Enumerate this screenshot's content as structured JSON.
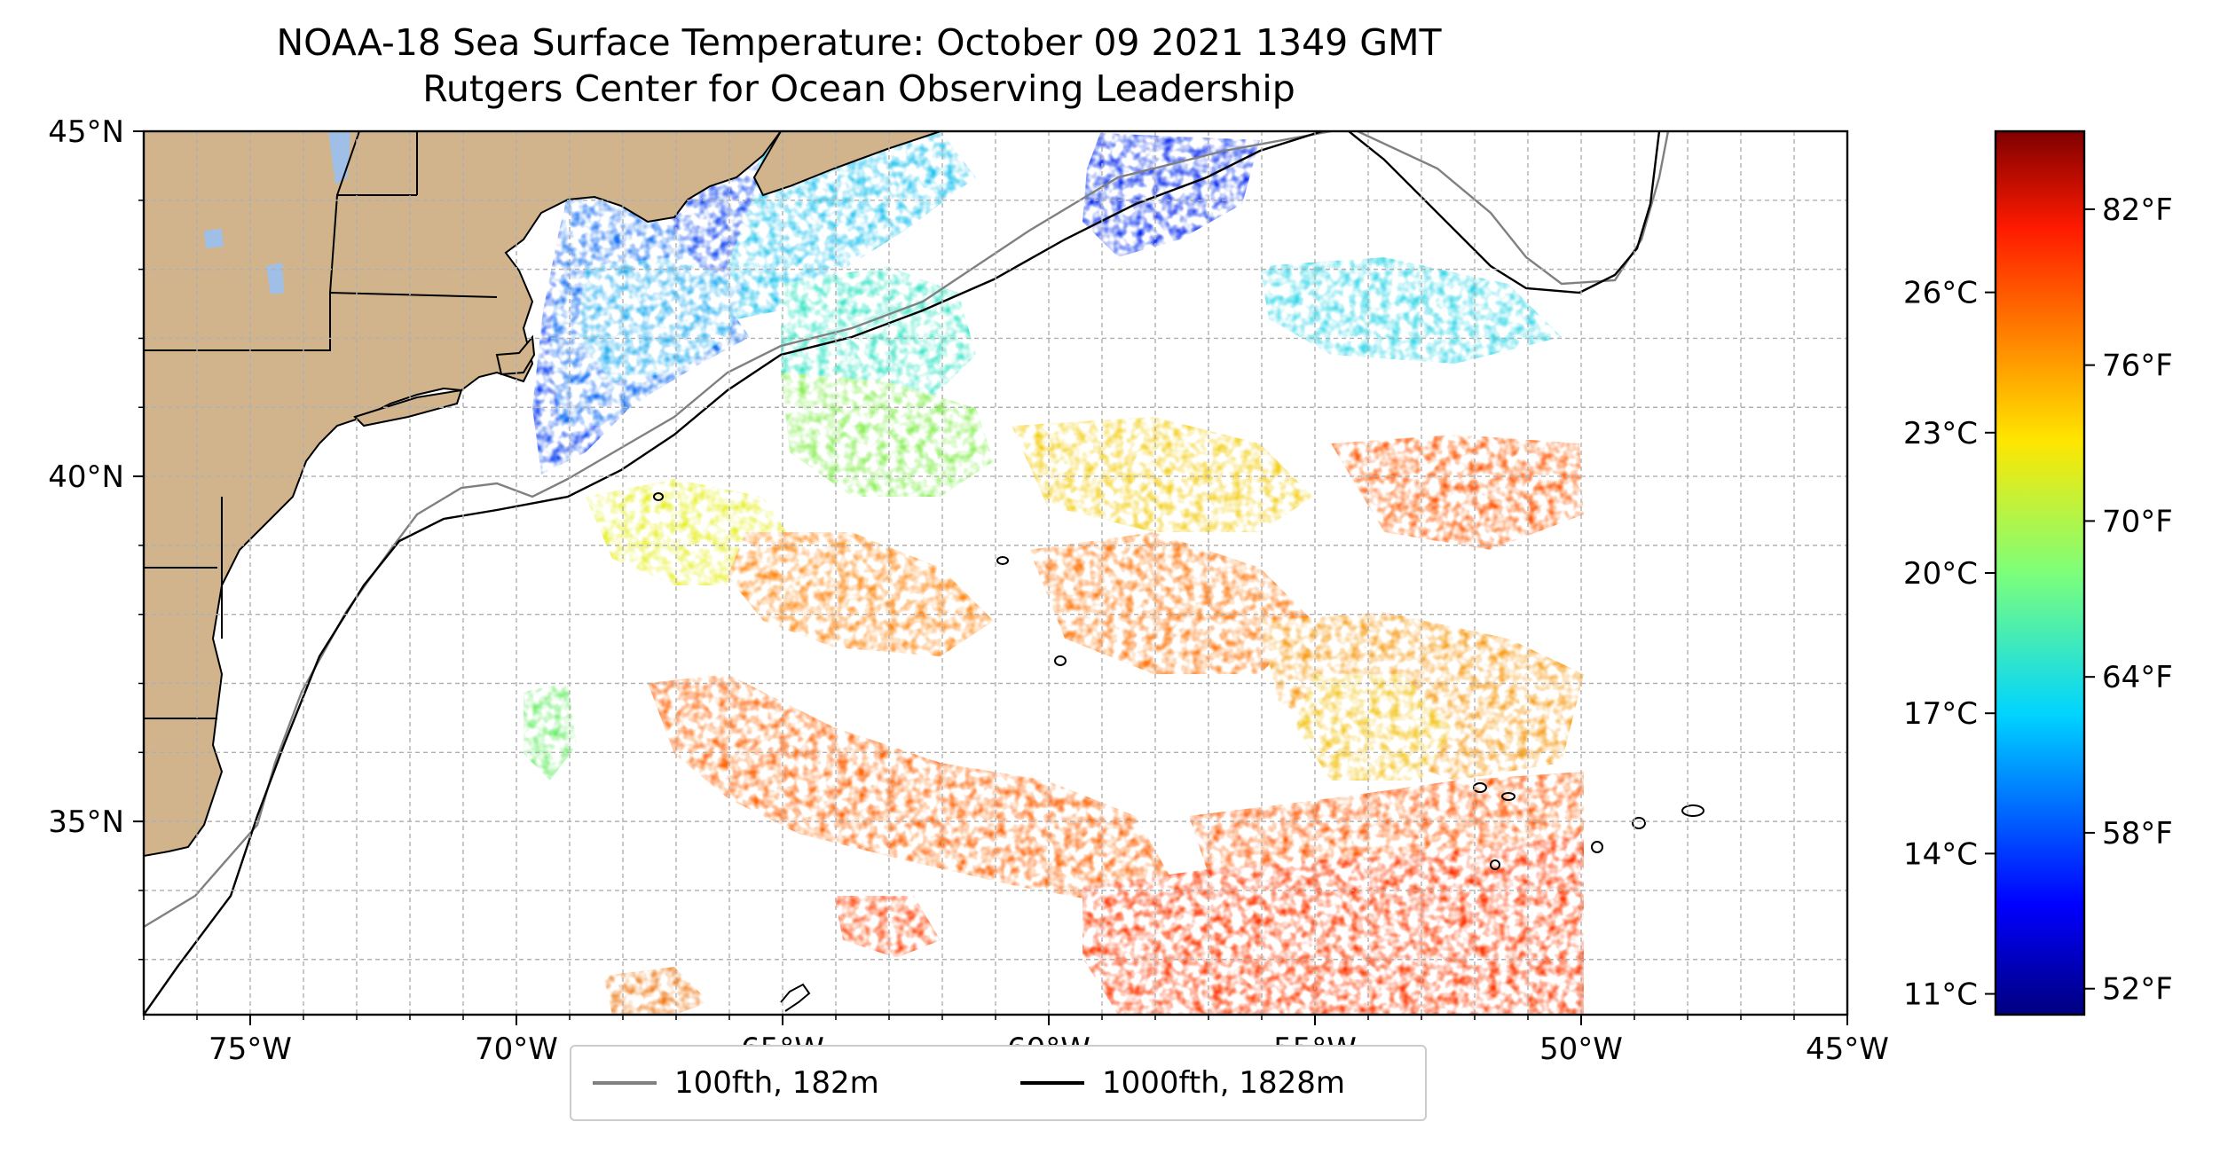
{
  "title": {
    "line1": "NOAA-18 Sea Surface Temperature: October 09 2021 1349 GMT",
    "line2": "Rutgers Center for Ocean Observing Leadership"
  },
  "map": {
    "lon_range": [
      -77,
      -45
    ],
    "lat_range": [
      32.2,
      45
    ],
    "x_ticks": [
      "75°W",
      "70°W",
      "65°W",
      "60°W",
      "55°W",
      "50°W",
      "45°W"
    ],
    "y_ticks": [
      "35°N",
      "40°N",
      "45°N"
    ],
    "gridlines": true,
    "land_color": "#d2b48c",
    "lake_color": "#9fbfe6"
  },
  "legend": {
    "items": [
      {
        "label": "100fth, 182m",
        "color": "#808080"
      },
      {
        "label": "1000fth, 1828m",
        "color": "#000000"
      }
    ],
    "placement": "bottom-center"
  },
  "colorbar": {
    "colormap": "jet",
    "celsius_labels": [
      "26°C",
      "23°C",
      "20°C",
      "17°C",
      "14°C",
      "11°C"
    ],
    "fahrenheit_labels": [
      "82°F",
      "76°F",
      "70°F",
      "64°F",
      "58°F",
      "52°F"
    ],
    "range_f": [
      51,
      85
    ]
  }
}
